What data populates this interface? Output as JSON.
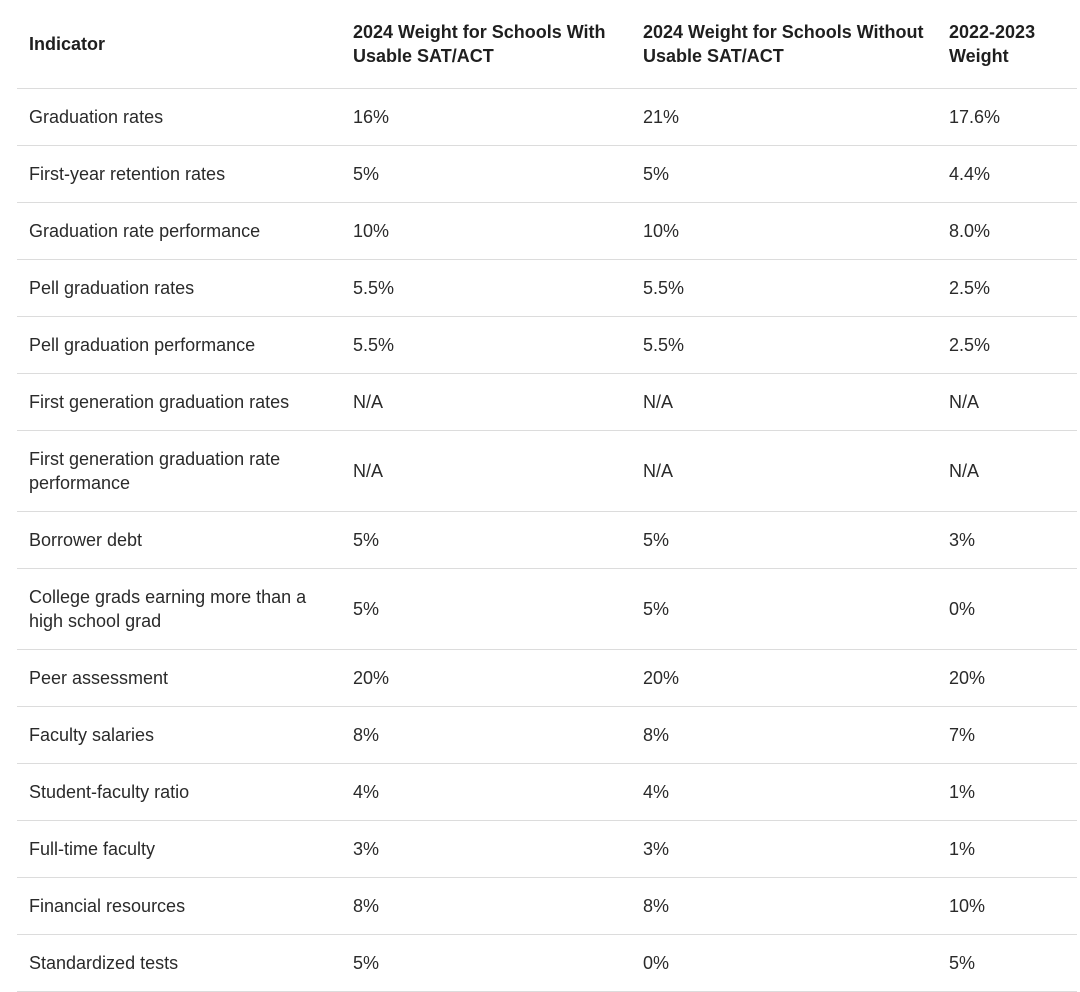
{
  "table": {
    "headers": [
      "Indicator",
      "2024 Weight for Schools With Usable SAT/ACT",
      "2024 Weight for Schools Without Usable SAT/ACT",
      "2022-2023 Weight"
    ],
    "rows": [
      [
        "Graduation rates",
        "16%",
        "21%",
        "17.6%"
      ],
      [
        "First-year retention rates",
        "5%",
        "5%",
        "4.4%"
      ],
      [
        "Graduation rate performance",
        "10%",
        "10%",
        "8.0%"
      ],
      [
        "Pell graduation rates",
        "5.5%",
        "5.5%",
        "2.5%"
      ],
      [
        "Pell graduation performance",
        "5.5%",
        "5.5%",
        "2.5%"
      ],
      [
        "First generation graduation rates",
        "N/A",
        "N/A",
        "N/A"
      ],
      [
        "First generation graduation rate performance",
        "N/A",
        "N/A",
        "N/A"
      ],
      [
        "Borrower debt",
        "5%",
        "5%",
        "3%"
      ],
      [
        "College grads earning more than a high school grad",
        "5%",
        "5%",
        "0%"
      ],
      [
        "Peer assessment",
        "20%",
        "20%",
        "20%"
      ],
      [
        "Faculty salaries",
        "8%",
        "8%",
        "7%"
      ],
      [
        "Student-faculty ratio",
        "4%",
        "4%",
        "1%"
      ],
      [
        "Full-time faculty",
        "3%",
        "3%",
        "1%"
      ],
      [
        "Financial resources",
        "8%",
        "8%",
        "10%"
      ],
      [
        "Standardized tests",
        "5%",
        "0%",
        "5%"
      ]
    ]
  }
}
